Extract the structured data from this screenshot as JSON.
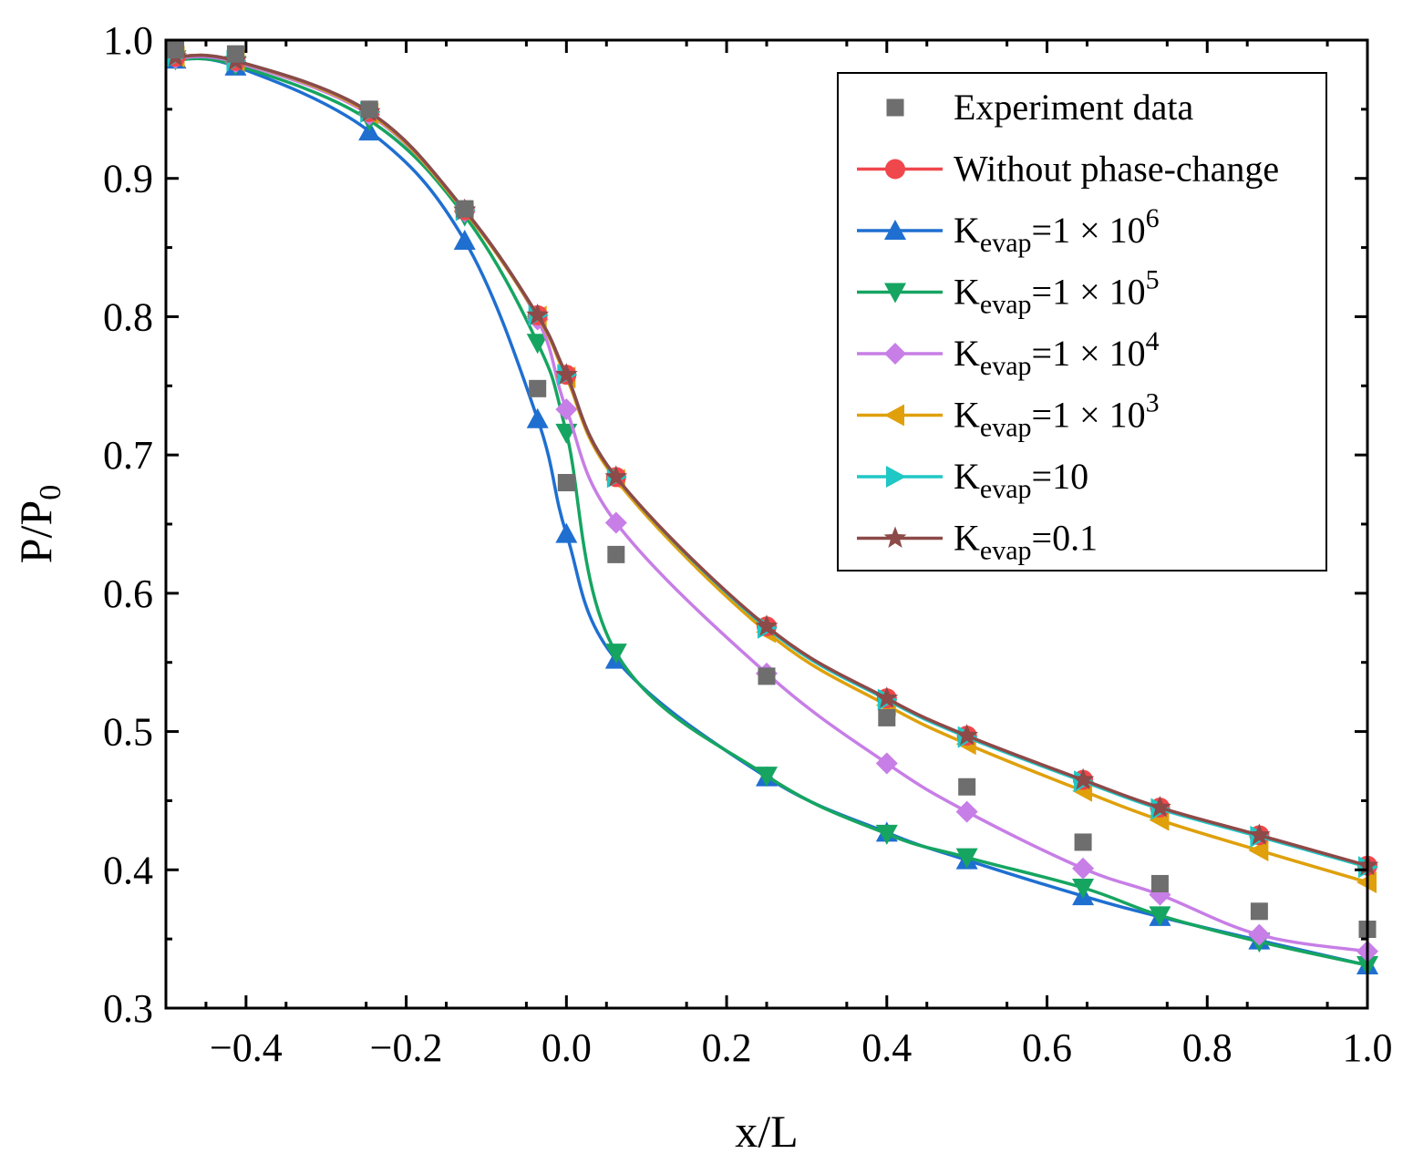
{
  "chart_data": {
    "type": "line",
    "title": "",
    "xlabel": "x/L",
    "ylabel": {
      "main": "P/P",
      "sub": "0"
    },
    "xlim": [
      -0.5,
      1.0
    ],
    "ylim": [
      0.3,
      1.0
    ],
    "xticks": [
      -0.4,
      -0.2,
      0.0,
      0.2,
      0.4,
      0.6,
      0.8,
      1.0
    ],
    "xtick_labels": [
      "−0.4",
      "−0.2",
      "0.0",
      "0.2",
      "0.4",
      "0.6",
      "0.8",
      "1.0"
    ],
    "yticks": [
      0.3,
      0.4,
      0.5,
      0.6,
      0.7,
      0.8,
      0.9,
      1.0
    ],
    "ytick_labels": [
      "0.3",
      "0.4",
      "0.5",
      "0.6",
      "0.7",
      "0.8",
      "0.9",
      "1.0"
    ],
    "grid": false,
    "legend_position": "top-right",
    "series": [
      {
        "name": "Experiment data",
        "legend": {
          "main": "Experiment data"
        },
        "color": "#6e6e6e",
        "marker": "square",
        "line": false,
        "x": [
          -0.488,
          -0.413,
          -0.246,
          -0.127,
          -0.036,
          0.0,
          0.062,
          0.25,
          0.4,
          0.5,
          0.645,
          0.741,
          0.865,
          1.0
        ],
        "y": [
          0.993,
          0.99,
          0.95,
          0.878,
          0.748,
          0.68,
          0.628,
          0.54,
          0.51,
          0.46,
          0.42,
          0.39,
          0.37,
          0.357
        ]
      },
      {
        "name": "Without phase-change",
        "legend": {
          "main": "Without phase-change"
        },
        "color": "#f0474c",
        "marker": "circle",
        "line": true,
        "x": [
          -0.488,
          -0.413,
          -0.246,
          -0.127,
          -0.036,
          0.0,
          0.062,
          0.25,
          0.4,
          0.5,
          0.645,
          0.741,
          0.865,
          1.0
        ],
        "y": [
          0.988,
          0.985,
          0.948,
          0.877,
          0.801,
          0.758,
          0.684,
          0.576,
          0.524,
          0.497,
          0.465,
          0.445,
          0.425,
          0.403
        ]
      },
      {
        "name": "Kevap=1 × 10^6",
        "legend": {
          "main": "K",
          "sub": "evap",
          "tail": "=1 × 10",
          "sup": "6"
        },
        "color": "#1f6fd1",
        "marker": "triangle-up",
        "line": true,
        "x": [
          -0.488,
          -0.413,
          -0.246,
          -0.127,
          -0.036,
          0.0,
          0.062,
          0.25,
          0.4,
          0.5,
          0.645,
          0.741,
          0.865,
          1.0
        ],
        "y": [
          0.986,
          0.981,
          0.934,
          0.855,
          0.726,
          0.643,
          0.552,
          0.467,
          0.427,
          0.407,
          0.381,
          0.366,
          0.349,
          0.331
        ]
      },
      {
        "name": "Kevap=1 × 10^5",
        "legend": {
          "main": "K",
          "sub": "evap",
          "tail": "=1 × 10",
          "sup": "5"
        },
        "color": "#16a561",
        "marker": "triangle-down",
        "line": true,
        "x": [
          -0.488,
          -0.413,
          -0.246,
          -0.127,
          -0.036,
          0.0,
          0.062,
          0.25,
          0.4,
          0.5,
          0.645,
          0.741,
          0.865,
          1.0
        ],
        "y": [
          0.986,
          0.982,
          0.942,
          0.873,
          0.781,
          0.716,
          0.557,
          0.468,
          0.426,
          0.409,
          0.387,
          0.367,
          0.348,
          0.331
        ]
      },
      {
        "name": "Kevap=1 × 10^4",
        "legend": {
          "main": "K",
          "sub": "evap",
          "tail": "=1 × 10",
          "sup": "4"
        },
        "color": "#c77ee6",
        "marker": "diamond",
        "line": true,
        "x": [
          -0.488,
          -0.413,
          -0.246,
          -0.127,
          -0.036,
          0.0,
          0.062,
          0.25,
          0.4,
          0.5,
          0.645,
          0.741,
          0.865,
          1.0
        ],
        "y": [
          0.987,
          0.984,
          0.946,
          0.876,
          0.798,
          0.733,
          0.651,
          0.542,
          0.477,
          0.442,
          0.401,
          0.382,
          0.353,
          0.341
        ]
      },
      {
        "name": "Kevap=1 × 10^3",
        "legend": {
          "main": "K",
          "sub": "evap",
          "tail": "=1 × 10",
          "sup": "3"
        },
        "color": "#dfa00b",
        "marker": "triangle-left",
        "line": true,
        "x": [
          -0.488,
          -0.413,
          -0.246,
          -0.127,
          -0.036,
          0.0,
          0.062,
          0.25,
          0.4,
          0.5,
          0.645,
          0.741,
          0.865,
          1.0
        ],
        "y": [
          0.988,
          0.985,
          0.947,
          0.876,
          0.8,
          0.756,
          0.682,
          0.572,
          0.519,
          0.491,
          0.457,
          0.436,
          0.414,
          0.391
        ]
      },
      {
        "name": "Kevap=10",
        "legend": {
          "main": "K",
          "sub": "evap",
          "tail": "=10"
        },
        "color": "#1fc7c5",
        "marker": "triangle-right",
        "line": true,
        "x": [
          -0.488,
          -0.413,
          -0.246,
          -0.127,
          -0.036,
          0.0,
          0.062,
          0.25,
          0.4,
          0.5,
          0.645,
          0.741,
          0.865,
          1.0
        ],
        "y": [
          0.988,
          0.985,
          0.948,
          0.877,
          0.801,
          0.758,
          0.684,
          0.575,
          0.523,
          0.496,
          0.464,
          0.444,
          0.424,
          0.402
        ]
      },
      {
        "name": "Kevap=0.1",
        "legend": {
          "main": "K",
          "sub": "evap",
          "tail": "=0.1"
        },
        "color": "#8c4a48",
        "marker": "star",
        "line": true,
        "x": [
          -0.488,
          -0.413,
          -0.246,
          -0.127,
          -0.036,
          0.0,
          0.062,
          0.25,
          0.4,
          0.5,
          0.645,
          0.741,
          0.865,
          1.0
        ],
        "y": [
          0.988,
          0.985,
          0.948,
          0.877,
          0.801,
          0.758,
          0.684,
          0.576,
          0.524,
          0.497,
          0.465,
          0.445,
          0.425,
          0.403
        ]
      }
    ]
  }
}
